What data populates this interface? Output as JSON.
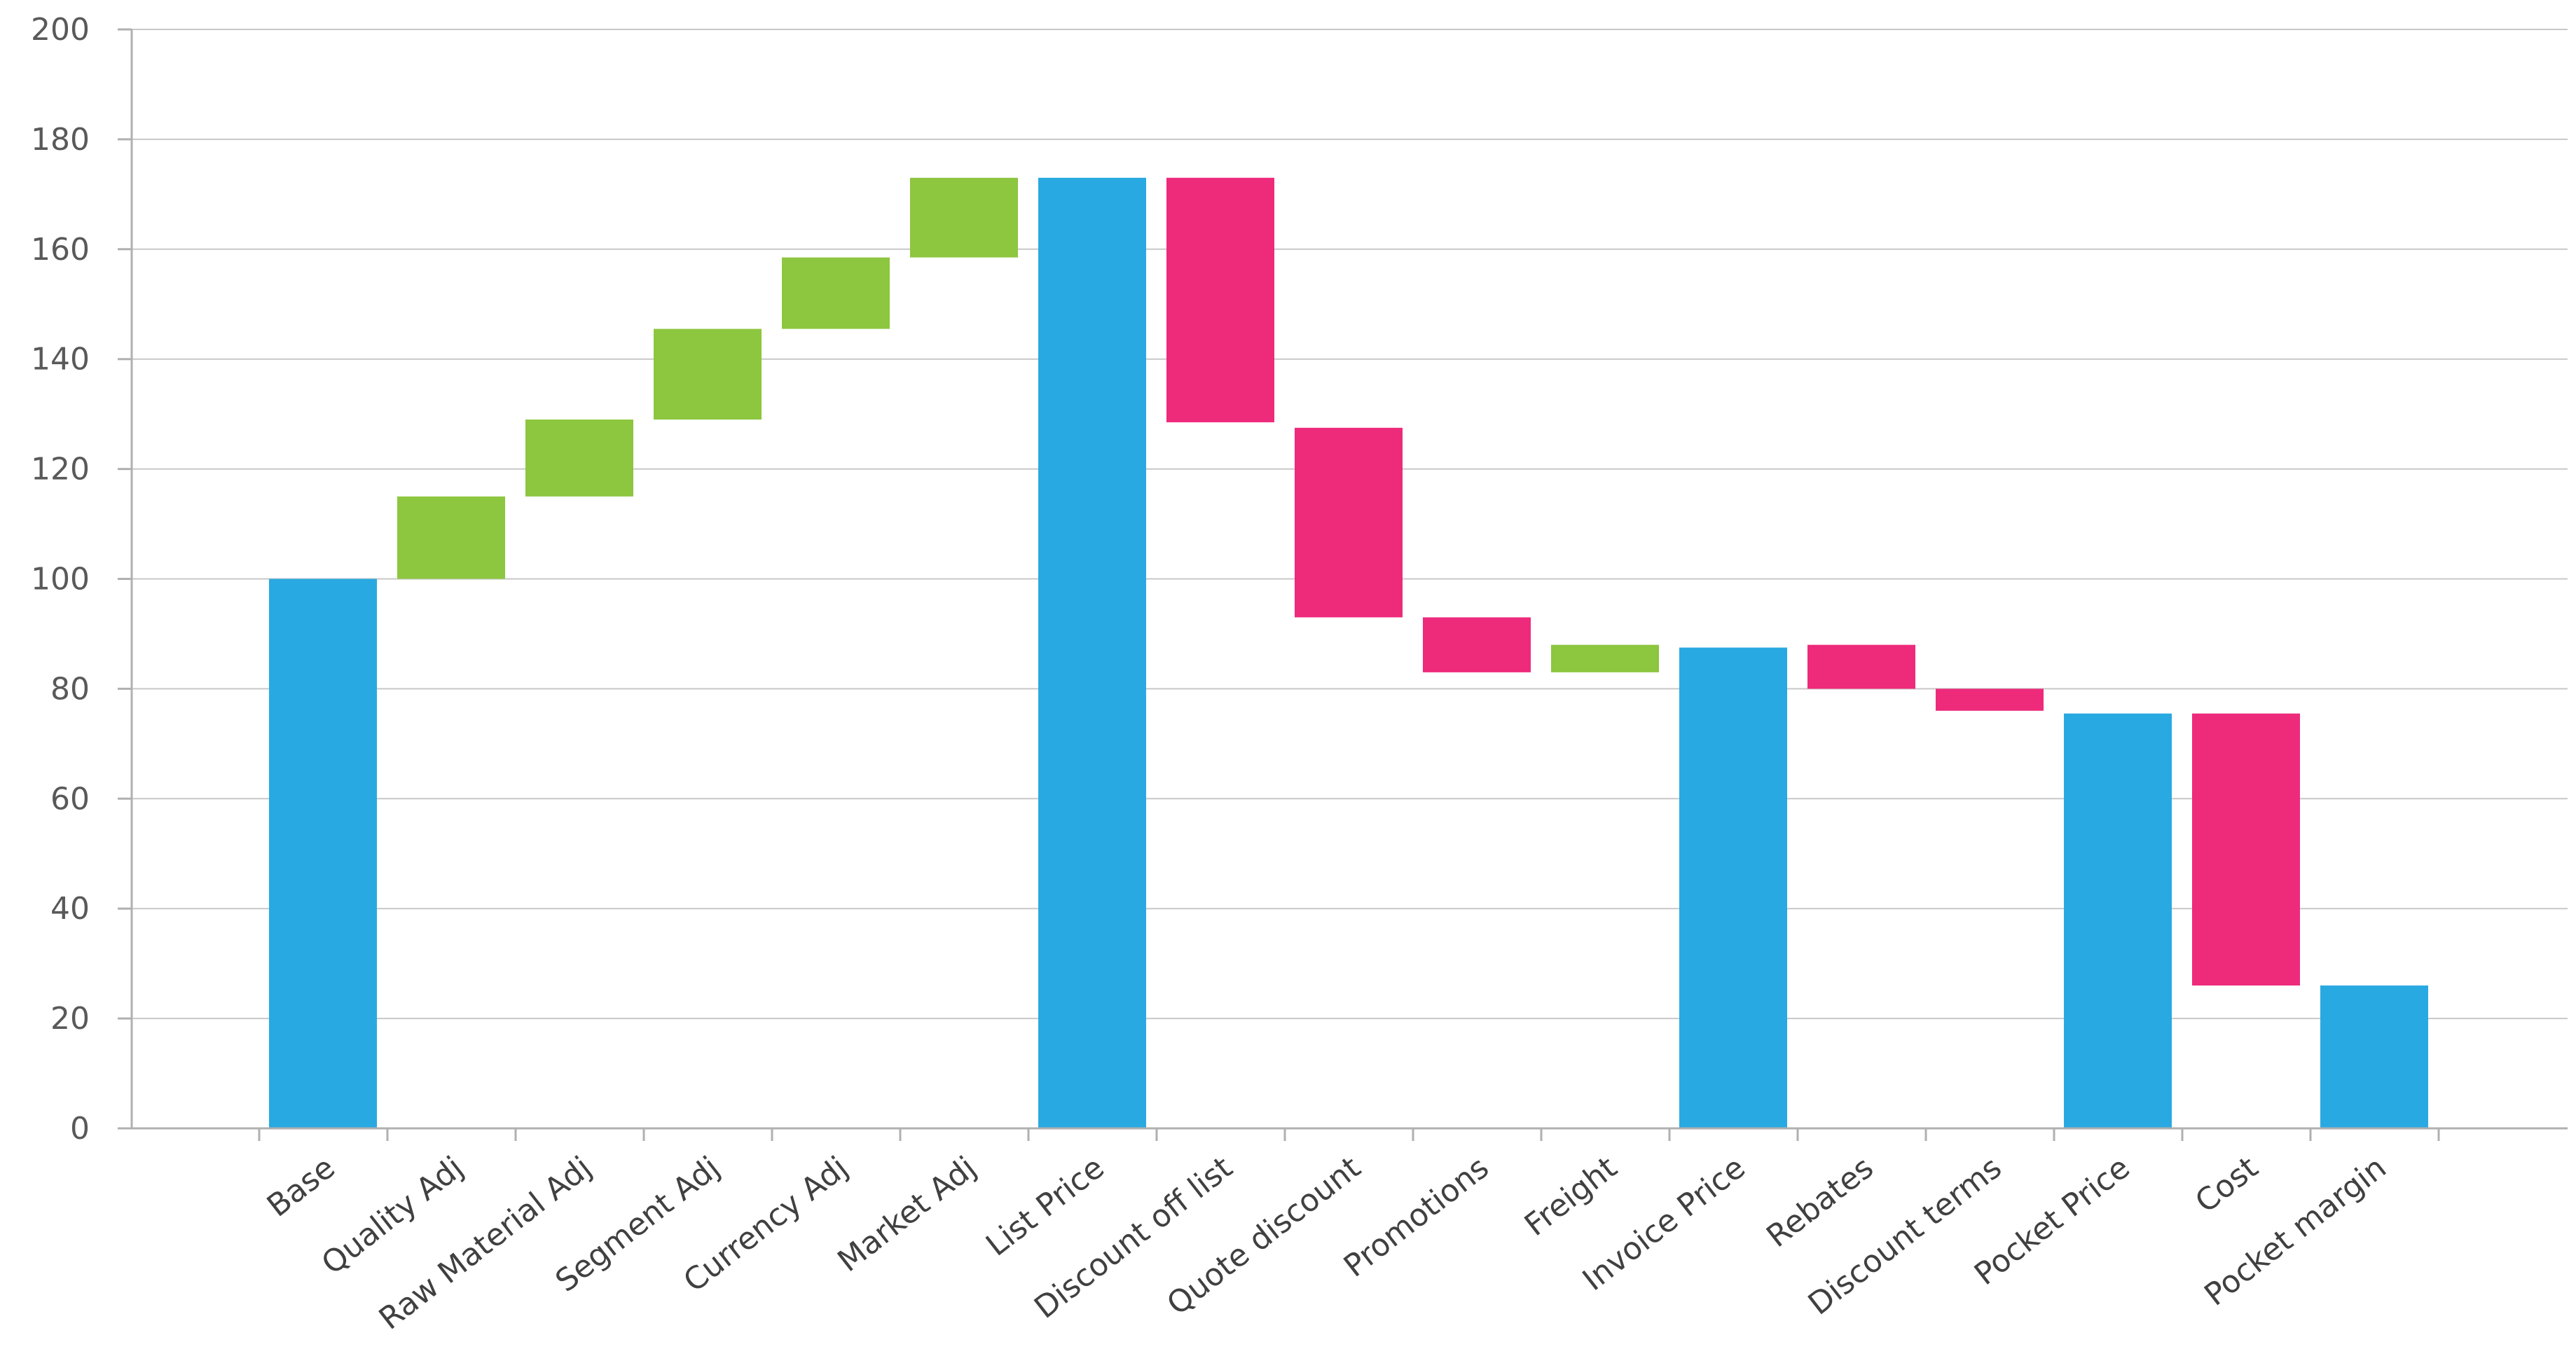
{
  "chart_data": {
    "type": "bar",
    "subtype": "waterfall",
    "title": "",
    "xlabel": "",
    "ylabel": "",
    "ylim": [
      0,
      200
    ],
    "yticks": [
      0,
      20,
      40,
      60,
      80,
      100,
      120,
      140,
      160,
      180,
      200
    ],
    "grid": true,
    "legend": "none",
    "colors": {
      "total": "#29a9e1",
      "increase": "#8dc63f",
      "decrease": "#ee2a7b"
    },
    "bars": [
      {
        "category": "Base",
        "kind": "total",
        "start": 0,
        "end": 100
      },
      {
        "category": "Quality Adj",
        "kind": "increase",
        "start": 100,
        "end": 115
      },
      {
        "category": "Raw Material Adj",
        "kind": "increase",
        "start": 115,
        "end": 129
      },
      {
        "category": "Segment Adj",
        "kind": "increase",
        "start": 129,
        "end": 145.5
      },
      {
        "category": "Currency Adj",
        "kind": "increase",
        "start": 145.5,
        "end": 158.5
      },
      {
        "category": "Market Adj",
        "kind": "increase",
        "start": 158.5,
        "end": 173
      },
      {
        "category": "List Price",
        "kind": "total",
        "start": 0,
        "end": 173
      },
      {
        "category": "Discount off list",
        "kind": "decrease",
        "start": 173,
        "end": 128.5
      },
      {
        "category": "Quote discount",
        "kind": "decrease",
        "start": 127.5,
        "end": 93
      },
      {
        "category": "Promotions",
        "kind": "decrease",
        "start": 93,
        "end": 83
      },
      {
        "category": "Freight",
        "kind": "increase",
        "start": 83,
        "end": 88
      },
      {
        "category": "Invoice Price",
        "kind": "total",
        "start": 0,
        "end": 87.5
      },
      {
        "category": "Rebates",
        "kind": "decrease",
        "start": 88,
        "end": 80
      },
      {
        "category": "Discount terms",
        "kind": "decrease",
        "start": 80,
        "end": 76
      },
      {
        "category": "Pocket Price",
        "kind": "total",
        "start": 0,
        "end": 75.5
      },
      {
        "category": "Cost",
        "kind": "decrease",
        "start": 75.5,
        "end": 26
      },
      {
        "category": "Pocket margin",
        "kind": "total",
        "start": 0,
        "end": 26
      }
    ]
  }
}
